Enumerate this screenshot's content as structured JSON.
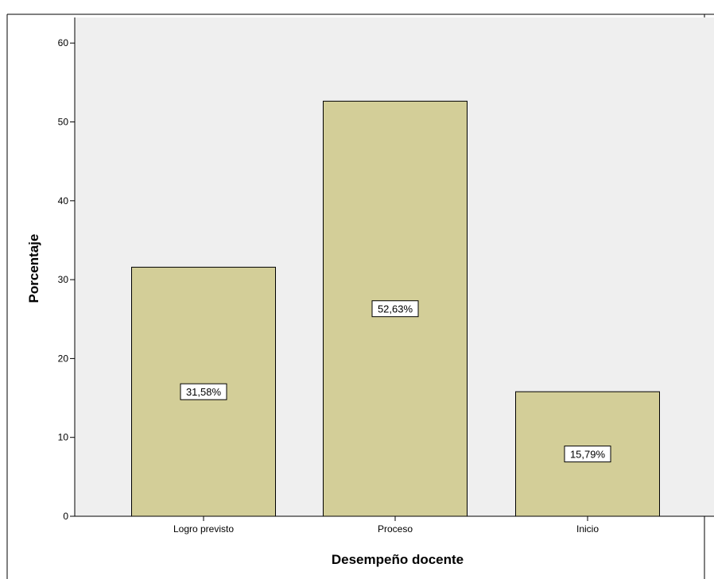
{
  "chart_data": {
    "type": "bar",
    "title": "",
    "xlabel": "Desempeño docente",
    "ylabel": "Porcentaje",
    "categories": [
      "Logro previsto",
      "Proceso",
      "Inicio"
    ],
    "values": [
      31.58,
      52.63,
      15.79
    ],
    "data_labels": [
      "31,58%",
      "52,63%",
      "15,79%"
    ],
    "ylim": [
      0,
      63
    ],
    "yticks": [
      0,
      10,
      20,
      30,
      40,
      50,
      60
    ],
    "grid": false,
    "legend": "none",
    "colors": {
      "plot_background": "#efefef",
      "bar_fill": "#d3ce98",
      "bar_stroke": "#000000"
    }
  }
}
